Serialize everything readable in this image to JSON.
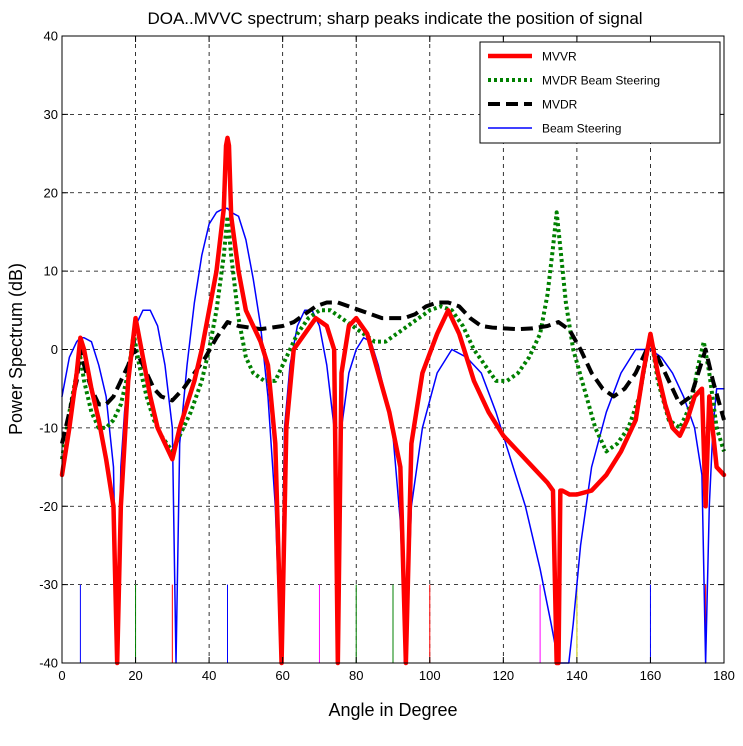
{
  "chart_data": {
    "type": "line",
    "title": "DOA..MVVC spectrum; sharp peaks indicate the position of signal",
    "xlabel": "Angle in Degree",
    "ylabel": "Power Spectrum (dB)",
    "xlim": [
      0,
      180
    ],
    "ylim": [
      -40,
      40
    ],
    "xticks": [
      0,
      20,
      40,
      60,
      80,
      100,
      120,
      140,
      160,
      180
    ],
    "yticks": [
      -40,
      -30,
      -20,
      -10,
      0,
      10,
      20,
      30,
      40
    ],
    "grid": true,
    "legend_position": "top-right",
    "series": [
      {
        "name": "MVVR",
        "color": "#ff0000",
        "style": "solid-thick",
        "x": [
          0,
          2,
          4,
          5,
          6,
          8,
          10,
          12,
          14,
          15,
          16,
          18,
          20,
          22,
          24,
          26,
          28,
          30,
          32,
          34,
          36,
          38,
          40,
          42,
          44,
          44.6,
          45,
          45.4,
          46,
          48,
          50,
          52,
          54,
          56,
          58,
          59.7,
          61,
          63,
          66,
          69,
          72,
          74,
          75,
          76,
          78,
          80,
          83,
          86,
          89,
          92,
          93.5,
          95,
          98,
          102,
          105,
          108,
          112,
          116,
          120,
          124,
          128,
          132,
          133.5,
          134.5,
          135,
          135.5,
          136,
          138,
          140,
          144,
          148,
          152,
          156,
          158,
          160,
          162,
          164,
          166,
          168,
          170,
          172,
          174,
          175,
          176,
          178,
          180
        ],
        "y": [
          -16,
          -10,
          -3,
          1.5,
          0,
          -5,
          -9,
          -14,
          -20,
          -40,
          -20,
          -4,
          4,
          -1,
          -6,
          -10,
          -12,
          -14,
          -10,
          -7,
          -4,
          0,
          5,
          10,
          18,
          26,
          27,
          26,
          17,
          10,
          5,
          3,
          1,
          -2,
          -12,
          -40,
          -10,
          0,
          2,
          4,
          3,
          0,
          -40,
          -3,
          3,
          4,
          2,
          -3,
          -8,
          -15,
          -40,
          -12,
          -3,
          2,
          5,
          2,
          -4,
          -8,
          -11,
          -13,
          -15,
          -17,
          -18,
          -40,
          -40,
          -18,
          -18,
          -18.5,
          -18.5,
          -18,
          -16,
          -13,
          -9,
          -3,
          2,
          -3,
          -7,
          -10,
          -11,
          -9,
          -6,
          -5,
          -20,
          -6,
          -15,
          -16
        ]
      },
      {
        "name": "MVDR Beam Steering",
        "color": "#008000",
        "style": "dotted-thick",
        "x": [
          0,
          2,
          4,
          5,
          6,
          8,
          10,
          12,
          14,
          16,
          18,
          19.5,
          21,
          23,
          25,
          27,
          30,
          32,
          35,
          38,
          40,
          42,
          44,
          45,
          46,
          48,
          50,
          52,
          55,
          58,
          61,
          64,
          67,
          70,
          73,
          76,
          79,
          82,
          85,
          88,
          91,
          94,
          97,
          100,
          103,
          106,
          109,
          112,
          115,
          118,
          121,
          124,
          127,
          130,
          132,
          133.5,
          134.5,
          135.5,
          137,
          139,
          142,
          145,
          148,
          151,
          154,
          157,
          160,
          162,
          165,
          168,
          171,
          173,
          174.5,
          176,
          178,
          180
        ],
        "y": [
          -14,
          -8,
          -3,
          -1,
          -4,
          -8,
          -10,
          -10,
          -9,
          -7,
          -3,
          2,
          -2,
          -6,
          -9,
          -11,
          -13,
          -11,
          -8,
          -4,
          0,
          5,
          12,
          17,
          12,
          4,
          -1,
          -3,
          -4,
          -4,
          -1,
          2,
          4,
          5,
          5,
          4,
          3,
          2,
          1,
          1,
          2,
          3,
          4,
          5,
          5.5,
          5,
          3,
          0,
          -2,
          -4,
          -4,
          -3,
          -1,
          2,
          7,
          13,
          17.5,
          13,
          6,
          0,
          -5,
          -10,
          -13,
          -12,
          -10,
          -6,
          2,
          -4,
          -9,
          -10,
          -7,
          -2,
          1,
          -3,
          -10,
          -13
        ]
      },
      {
        "name": "MVDR",
        "color": "#000000",
        "style": "dashed-thick",
        "x": [
          0,
          2,
          4,
          5,
          6,
          8,
          10,
          12,
          14,
          16,
          18,
          19.5,
          21,
          23,
          25,
          27,
          30,
          33,
          36,
          39,
          42,
          45,
          48,
          51,
          54,
          57,
          60,
          63,
          66,
          69,
          72,
          75,
          78,
          81,
          84,
          87,
          90,
          93,
          96,
          99,
          102,
          105,
          108,
          111,
          114,
          117,
          120,
          124,
          128,
          132,
          135,
          138,
          141,
          144,
          147,
          150,
          153,
          156,
          158,
          160,
          162,
          165,
          168,
          171,
          173,
          175,
          177,
          180
        ],
        "y": [
          -12,
          -8,
          -4,
          0,
          -2,
          -5,
          -7,
          -7,
          -6,
          -4,
          -2,
          0,
          -1,
          -3,
          -5,
          -6,
          -6.5,
          -5,
          -3,
          -1,
          1.5,
          3.5,
          3,
          2.8,
          2.6,
          2.8,
          3,
          3.5,
          4.5,
          5.5,
          6,
          6,
          5.5,
          5,
          4.5,
          4,
          4,
          4,
          4.5,
          5.5,
          6,
          6,
          5.5,
          4,
          3,
          2.8,
          2.7,
          2.6,
          2.7,
          3,
          3.5,
          2.5,
          0,
          -3,
          -5,
          -6,
          -5,
          -3,
          -1,
          1,
          -1,
          -4,
          -7,
          -6,
          -3,
          0,
          -4,
          -9
        ]
      },
      {
        "name": "Beam Steering",
        "color": "#0000ff",
        "style": "solid-thin",
        "x": [
          0,
          2,
          4,
          5,
          6,
          8,
          10,
          12,
          14,
          15,
          16,
          17,
          18,
          20,
          22,
          24,
          26,
          28,
          30,
          31,
          32,
          34,
          36,
          38,
          40,
          42,
          44,
          45,
          46,
          48,
          50,
          52,
          54,
          56,
          58,
          59.5,
          60.5,
          62,
          64,
          66,
          68,
          70,
          72,
          74,
          75,
          76,
          78,
          80,
          82,
          84,
          86,
          88,
          90,
          92,
          93.5,
          95,
          98,
          102,
          106,
          110,
          114,
          118,
          122,
          126,
          130,
          133,
          135,
          137,
          137.8,
          139,
          141,
          144,
          148,
          152,
          156,
          160,
          163,
          166,
          169,
          172,
          174,
          175,
          176,
          177,
          178,
          180
        ],
        "y": [
          -6,
          -1,
          1,
          1.5,
          1.5,
          1,
          -2,
          -6,
          -15,
          -40,
          -15,
          -8,
          -3,
          3,
          5,
          5,
          3,
          -2,
          -10,
          -40,
          -12,
          -2,
          6,
          12,
          16,
          17.5,
          18,
          18,
          17.5,
          17,
          14,
          9,
          3,
          -6,
          -20,
          -40,
          -10,
          -2,
          3,
          5,
          5,
          3,
          -2,
          -10,
          -40,
          -10,
          -3,
          0,
          1.5,
          1,
          -2,
          -6,
          -11,
          -22,
          -40,
          -20,
          -10,
          -3,
          0,
          -1,
          -3,
          -8,
          -14,
          -20,
          -28,
          -35,
          -40,
          -40,
          -40,
          -35,
          -25,
          -15,
          -8,
          -3,
          0,
          0,
          -1,
          -3,
          -6,
          -10,
          -16,
          -40,
          -20,
          -10,
          -5,
          -5
        ]
      }
    ],
    "stem_markers": [
      {
        "x": 5,
        "color": "#0000ff"
      },
      {
        "x": 15,
        "color": "#0000ff"
      },
      {
        "x": 20,
        "color": "#008000"
      },
      {
        "x": 30,
        "color": "#ff0000"
      },
      {
        "x": 45,
        "color": "#0000ff"
      },
      {
        "x": 60,
        "color": "#0000ff"
      },
      {
        "x": 70,
        "color": "#ff00ff"
      },
      {
        "x": 75,
        "color": "#ff0000"
      },
      {
        "x": 80,
        "color": "#008000"
      },
      {
        "x": 90,
        "color": "#008000"
      },
      {
        "x": 93,
        "color": "#0000ff"
      },
      {
        "x": 100,
        "color": "#ff0000"
      },
      {
        "x": 130,
        "color": "#ff00ff"
      },
      {
        "x": 135,
        "color": "#ff0000"
      },
      {
        "x": 140,
        "color": "#c8c800"
      },
      {
        "x": 160,
        "color": "#0000ff"
      },
      {
        "x": 175,
        "color": "#ff0000"
      }
    ],
    "stem_marker_top": -30,
    "stem_marker_base": -40
  }
}
